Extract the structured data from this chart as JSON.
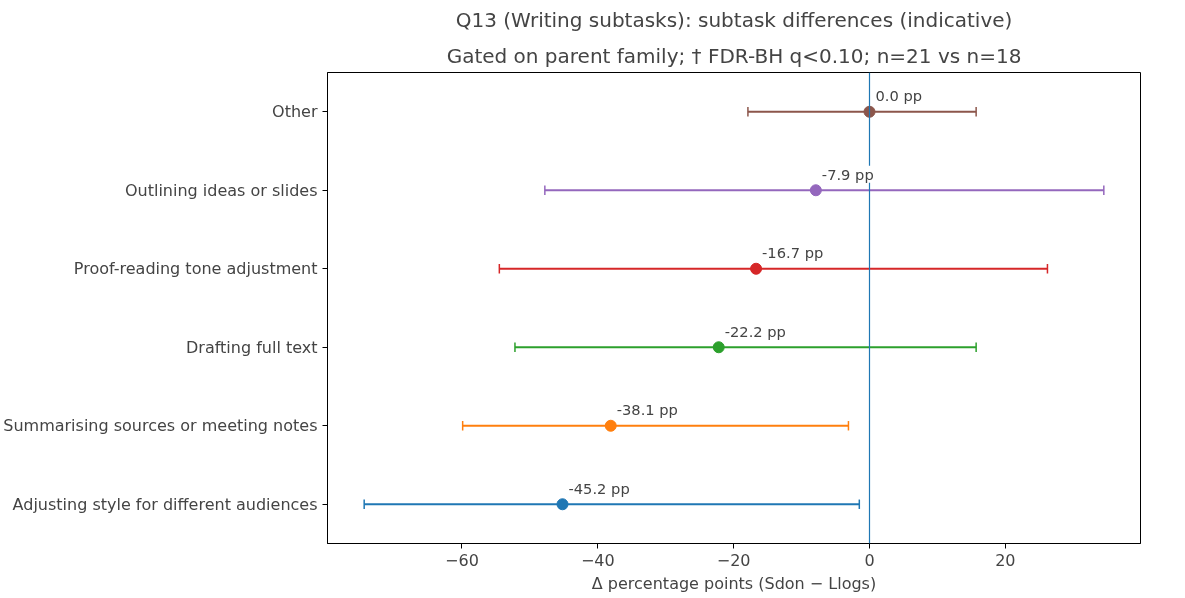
{
  "chart_data": {
    "type": "scatter",
    "orientation": "horizontal",
    "title": "Q13 (Writing subtasks): subtask differences (indicative)",
    "subtitle": "Gated on parent family; † FDR-BH q<0.10; n=21 vs n=18",
    "xlabel": "Δ percentage points (Sdon − Llogs)",
    "categories": [
      "Other",
      "Outlining ideas or slides",
      "Proof-reading tone adjustment",
      "Drafting full text",
      "Summarising sources or meeting notes",
      "Adjusting style for different audiences"
    ],
    "values": [
      0.0,
      -7.9,
      -16.7,
      -22.2,
      -38.1,
      -45.2
    ],
    "errors": [
      [
        -17.9,
        15.7
      ],
      [
        -47.8,
        34.5
      ],
      [
        -54.5,
        26.2
      ],
      [
        -52.2,
        15.7
      ],
      [
        -59.9,
        -3.1
      ],
      [
        -74.4,
        -1.5
      ]
    ],
    "colors": [
      "#8c564b",
      "#9467bd",
      "#d62728",
      "#2ca02c",
      "#ff7f0e",
      "#1f77b4"
    ],
    "value_labels": [
      "0.0 pp",
      "-7.9 pp",
      "-16.7 pp",
      "-22.2 pp",
      "-38.1 pp",
      "-45.2 pp"
    ],
    "legend": false,
    "xlim": [
      -79.8,
      39.9
    ],
    "xticks": [
      {
        "value": -60,
        "label": "−60"
      },
      {
        "value": -40,
        "label": "−40"
      },
      {
        "value": -20,
        "label": "−20"
      },
      0,
      20
    ],
    "ref_lines": [
      {
        "axis": "x",
        "value": 0,
        "color": "#1f77b4"
      }
    ],
    "marker": "circle",
    "grid": false
  }
}
